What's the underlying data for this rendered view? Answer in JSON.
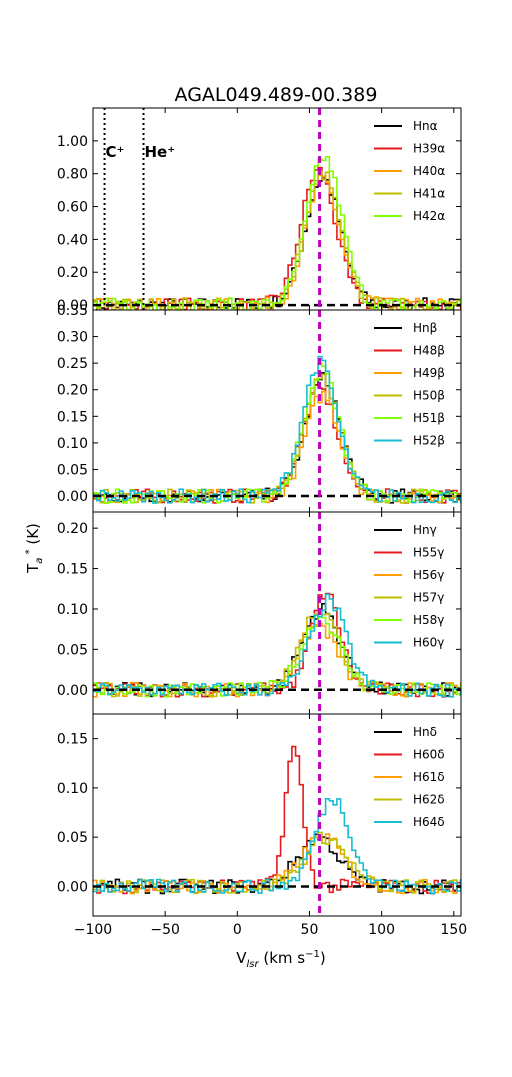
{
  "chart_data": {
    "type": "line",
    "title": "AGAL049.489-00.389",
    "xlabel": "V_lsr (km s^-1)",
    "ylabel": "T_a^* (K)",
    "xlim": [
      -100,
      155
    ],
    "x_ticks": [
      -100,
      -50,
      0,
      50,
      100,
      150
    ],
    "x_tick_labels": [
      "−100",
      "−50",
      "0",
      "50",
      "100",
      "150"
    ],
    "vertical_lines": [
      {
        "x": -92,
        "label": "C⁺",
        "style": "dotted",
        "color": "#000000"
      },
      {
        "x": -65,
        "label": "He⁺",
        "style": "dotted",
        "color": "#000000"
      },
      {
        "x": 57,
        "label": "",
        "style": "dashed",
        "color": "#bf00bf"
      }
    ],
    "panels": [
      {
        "ylim": [
          -0.03,
          1.2
        ],
        "y_ticks": [
          0.0,
          0.2,
          0.4,
          0.6,
          0.8,
          1.0
        ],
        "y_tick_labels": [
          "0.00",
          "0.20",
          "0.40",
          "0.60",
          "0.80",
          "1.00"
        ],
        "series": [
          {
            "name": "Hnα",
            "color": "#000000",
            "profile": {
              "kind": "gauss",
              "amp": 0.78,
              "center": 58,
              "width": 12
            }
          },
          {
            "name": "H39α",
            "color": "#e41a1c",
            "profile": {
              "kind": "gauss",
              "amp": 0.82,
              "center": 55,
              "width": 12
            }
          },
          {
            "name": "H40α",
            "color": "#ff9d00",
            "profile": {
              "kind": "gauss",
              "amp": 0.76,
              "center": 58,
              "width": 12
            }
          },
          {
            "name": "H41α",
            "color": "#bfbf00",
            "profile": {
              "kind": "gauss",
              "amp": 0.8,
              "center": 58,
              "width": 12
            }
          },
          {
            "name": "H42α",
            "color": "#80ff00",
            "profile": {
              "kind": "gauss",
              "amp": 0.9,
              "center": 59,
              "width": 12
            }
          }
        ]
      },
      {
        "ylim": [
          -0.03,
          0.35
        ],
        "y_ticks": [
          0.0,
          0.05,
          0.1,
          0.15,
          0.2,
          0.25,
          0.3,
          0.35
        ],
        "y_tick_labels": [
          "0.00",
          "0.05",
          "0.10",
          "0.15",
          "0.20",
          "0.25",
          "0.30",
          "0.35"
        ],
        "series": [
          {
            "name": "Hnβ",
            "color": "#000000",
            "profile": {
              "kind": "gauss",
              "amp": 0.22,
              "center": 58,
              "width": 12
            }
          },
          {
            "name": "H48β",
            "color": "#e41a1c",
            "profile": {
              "kind": "gauss",
              "amp": 0.2,
              "center": 56,
              "width": 12
            }
          },
          {
            "name": "H49β",
            "color": "#ff9d00",
            "profile": {
              "kind": "gauss",
              "amp": 0.19,
              "center": 58,
              "width": 12
            }
          },
          {
            "name": "H50β",
            "color": "#bfbf00",
            "profile": {
              "kind": "gauss",
              "amp": 0.23,
              "center": 57,
              "width": 12
            }
          },
          {
            "name": "H51β",
            "color": "#80ff00",
            "profile": {
              "kind": "gauss",
              "amp": 0.24,
              "center": 57,
              "width": 12
            }
          },
          {
            "name": "H52β",
            "color": "#17becf",
            "profile": {
              "kind": "gauss",
              "amp": 0.25,
              "center": 56,
              "width": 12
            }
          }
        ]
      },
      {
        "ylim": [
          -0.03,
          0.22
        ],
        "y_ticks": [
          0.0,
          0.05,
          0.1,
          0.15,
          0.2
        ],
        "y_tick_labels": [
          "0.00",
          "0.05",
          "0.10",
          "0.15",
          "0.20"
        ],
        "series": [
          {
            "name": "Hnγ",
            "color": "#000000",
            "profile": {
              "kind": "gauss",
              "amp": 0.1,
              "center": 57,
              "width": 13
            }
          },
          {
            "name": "H55γ",
            "color": "#e41a1c",
            "profile": {
              "kind": "gauss",
              "amp": 0.12,
              "center": 60,
              "width": 10
            }
          },
          {
            "name": "H56γ",
            "color": "#ff9d00",
            "profile": {
              "kind": "gauss",
              "amp": 0.08,
              "center": 55,
              "width": 13
            }
          },
          {
            "name": "H57γ",
            "color": "#bfbf00",
            "profile": {
              "kind": "gauss",
              "amp": 0.1,
              "center": 56,
              "width": 13
            }
          },
          {
            "name": "H58γ",
            "color": "#80ff00",
            "profile": {
              "kind": "gauss",
              "amp": 0.09,
              "center": 57,
              "width": 13
            }
          },
          {
            "name": "H60γ",
            "color": "#17becf",
            "profile": {
              "kind": "gauss",
              "amp": 0.11,
              "center": 62,
              "width": 12
            }
          }
        ]
      },
      {
        "ylim": [
          -0.03,
          0.175
        ],
        "y_ticks": [
          0.0,
          0.05,
          0.1,
          0.15
        ],
        "y_tick_labels": [
          "0.00",
          "0.05",
          "0.10",
          "0.15"
        ],
        "series": [
          {
            "name": "Hnδ",
            "color": "#000000",
            "profile": {
              "kind": "gauss",
              "amp": 0.05,
              "center": 55,
              "width": 14
            }
          },
          {
            "name": "H60δ",
            "color": "#e41a1c",
            "profile": {
              "kind": "gauss",
              "amp": 0.14,
              "center": 38,
              "width": 6
            }
          },
          {
            "name": "H61δ",
            "color": "#ff9d00",
            "profile": {
              "kind": "gauss",
              "amp": 0.05,
              "center": 58,
              "width": 14
            }
          },
          {
            "name": "H62δ",
            "color": "#bfbf00",
            "profile": {
              "kind": "gauss",
              "amp": 0.05,
              "center": 60,
              "width": 14
            }
          },
          {
            "name": "H64δ",
            "color": "#17becf",
            "profile": {
              "kind": "gauss",
              "amp": 0.09,
              "center": 65,
              "width": 12
            }
          }
        ]
      }
    ]
  }
}
